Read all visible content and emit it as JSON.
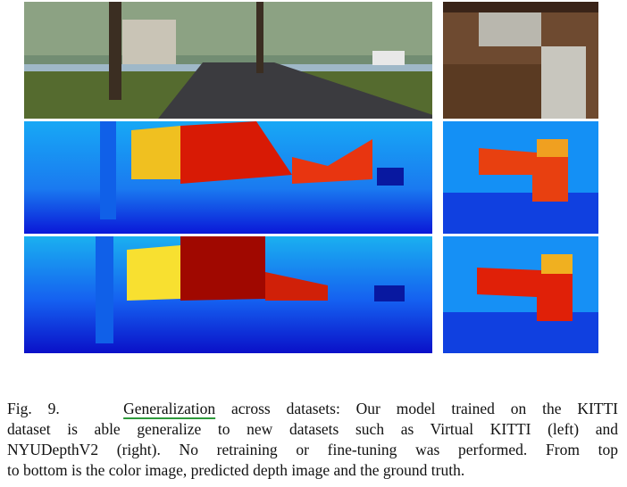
{
  "figure": {
    "caption": {
      "label": "Fig. 9.",
      "underlined_word": "Generalization",
      "lines": [
        "across datasets: Our model trained on the KITTI",
        "dataset is able generalize to new datasets such as Virtual KITTI (left) and",
        "NYUDepthV2 (right). No retraining or fine-tuning was performed. From top",
        "to bottom is the color image, predicted depth image and the ground truth."
      ]
    }
  }
}
